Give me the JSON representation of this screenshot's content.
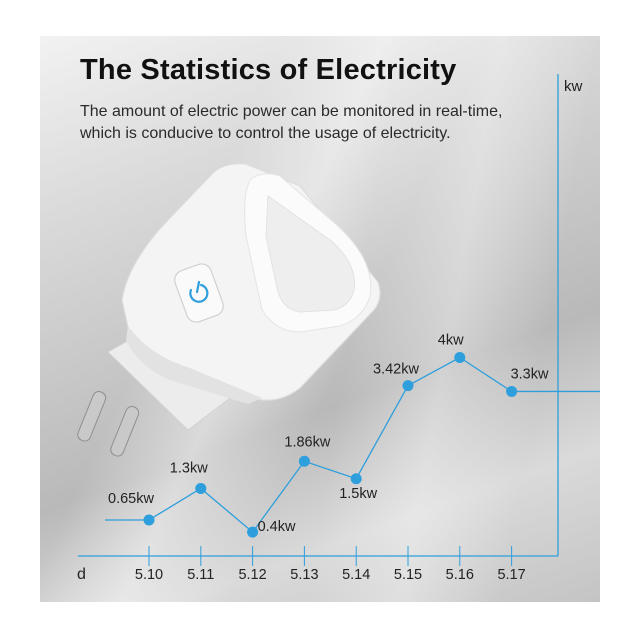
{
  "header": {
    "title": "The Statistics of Electricity",
    "subtitle_line1": "The amount of electric power can be monitored in real-time,",
    "subtitle_line2": "which is conducive to control the usage of electricity."
  },
  "colors": {
    "accent": "#2e9fdc",
    "title": "#111111",
    "plug_body": "#f4f4f4"
  },
  "icons": {
    "power_button": "power-icon"
  },
  "chart_data": {
    "type": "line",
    "ylabel": "kw",
    "xlabel": "d",
    "categories": [
      "5.10",
      "5.11",
      "5.12",
      "5.13",
      "5.14",
      "5.15",
      "5.16",
      "5.17"
    ],
    "values": [
      0.65,
      1.3,
      0.4,
      1.86,
      1.5,
      3.42,
      4,
      3.3
    ],
    "data_labels": [
      "0.65kw",
      "1.3kw",
      "0.4kw",
      "1.86kw",
      "1.5kw",
      "3.42kw",
      "4kw",
      "3.3kw"
    ],
    "grid": false,
    "legend": "none"
  }
}
